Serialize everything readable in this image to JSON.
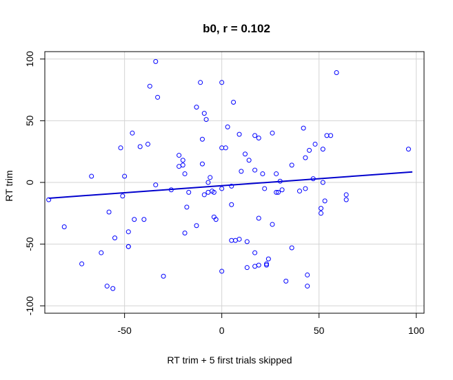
{
  "chart_data": {
    "type": "scatter",
    "title": "b0, r = 0.102",
    "xlabel": "RT trim + 5 first trials skipped",
    "ylabel": "RT trim",
    "xlim": [
      -91,
      104
    ],
    "ylim": [
      -106,
      106
    ],
    "xticks": [
      -50,
      0,
      50,
      100
    ],
    "yticks": [
      -100,
      -50,
      0,
      50,
      100
    ],
    "xtick_labels": [
      "-50",
      "0",
      "50",
      "100"
    ],
    "ytick_labels": [
      "-100",
      "-50",
      "0",
      "50",
      "100"
    ],
    "grid": true,
    "point_color": "#0000ff",
    "line_color": "#0000cd",
    "regression_line": {
      "x": [
        -89,
        98
      ],
      "y": [
        -12.8,
        8.5
      ]
    },
    "points": {
      "x": [
        -34,
        -11,
        0,
        -37,
        -33,
        59,
        -13,
        -9,
        6,
        -8,
        3,
        -46,
        9,
        -10,
        26,
        42,
        17,
        54,
        48,
        -38,
        -52,
        -42,
        -22,
        -34,
        -20,
        0,
        2,
        12,
        14,
        10,
        19,
        21,
        28,
        36,
        45,
        52,
        -10,
        -20,
        -67,
        -50,
        -22,
        -19,
        -26,
        -17,
        -6,
        5,
        17,
        19,
        28,
        40,
        43,
        53,
        64,
        -89,
        -51,
        -58,
        -45,
        -40,
        -9,
        -7,
        -4,
        5,
        7,
        9,
        17,
        23,
        24,
        31,
        47,
        52,
        56,
        64,
        -81,
        -55,
        -48,
        -48,
        -62,
        -19,
        -5,
        5,
        -72,
        -59,
        -30,
        -48,
        -56,
        0,
        13,
        17,
        23,
        33,
        44,
        44,
        51,
        13,
        22,
        -4,
        -3,
        -13,
        -7,
        -18,
        96,
        43,
        0,
        36,
        51,
        29,
        30,
        19,
        26
      ],
      "y": [
        98,
        81,
        81,
        78,
        69,
        89,
        61,
        56,
        65,
        51,
        45,
        40,
        39,
        35,
        40,
        44,
        38,
        38,
        31,
        31,
        28,
        29,
        22,
        -2,
        18,
        28,
        28,
        23,
        18,
        9,
        36,
        7,
        7,
        14,
        26,
        27,
        15,
        14,
        5,
        5,
        13,
        7,
        -6,
        -8,
        4,
        -18,
        10,
        -29,
        -8,
        -7,
        20,
        -15,
        -10,
        -14,
        -11,
        -24,
        -30,
        -30,
        -10,
        -8,
        -8,
        -47,
        -47,
        -46,
        -57,
        -66,
        -62,
        -6,
        3,
        0,
        38,
        -14,
        -36,
        -45,
        -40,
        -52,
        -57,
        -41,
        -7,
        -3,
        -66,
        -84,
        -76,
        -52,
        -86,
        -72,
        -48,
        -68,
        -67,
        -80,
        -75,
        -84,
        -25,
        -69,
        -5,
        -28,
        -30,
        -35,
        0,
        -20,
        27,
        -5,
        -5,
        -53,
        -21,
        -8,
        1,
        -67,
        -34
      ]
    }
  }
}
